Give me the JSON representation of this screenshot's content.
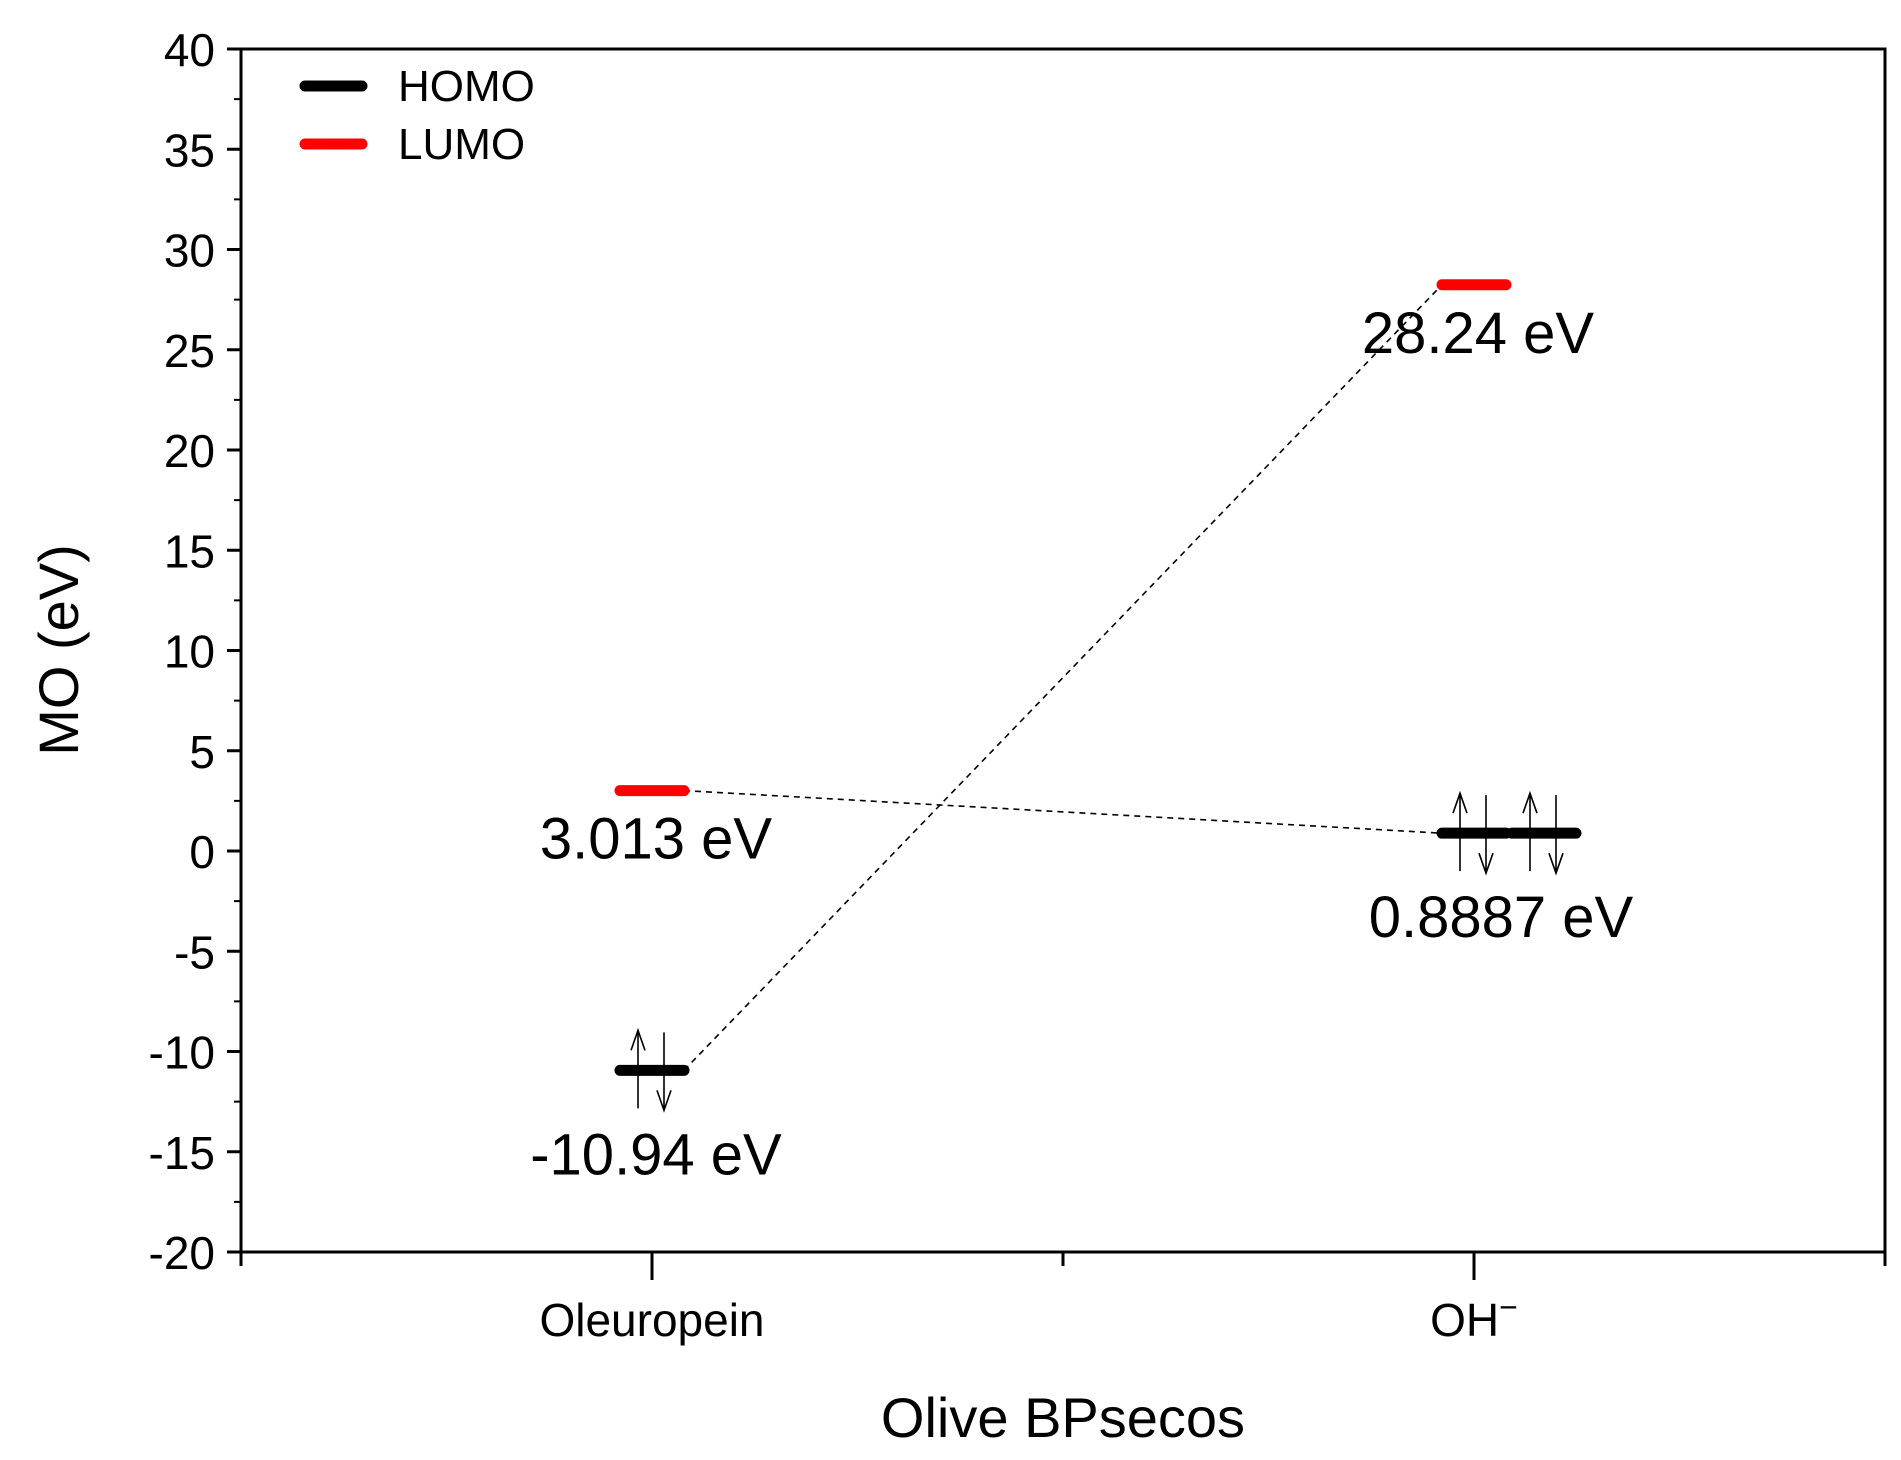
{
  "chart_data": {
    "type": "energy-level-diagram",
    "title": "",
    "xlabel": "Olive BPsecos",
    "ylabel": "MO (eV)",
    "ylim": [
      -20,
      40
    ],
    "y_ticks": [
      -20,
      -15,
      -10,
      -5,
      0,
      5,
      10,
      15,
      20,
      25,
      30,
      35,
      40
    ],
    "y_tick_labels": [
      "-20",
      "-15",
      "-10",
      "-5",
      "0",
      "5",
      "10",
      "15",
      "20",
      "25",
      "30",
      "35",
      "40"
    ],
    "y_minor_step": 2.5,
    "categories": [
      {
        "label": "Oleuropein",
        "superscript": ""
      },
      {
        "label": "OH",
        "superscript": "−"
      }
    ],
    "legend": {
      "position": "top-left",
      "entries": [
        {
          "label": "HOMO",
          "color": "#000000"
        },
        {
          "label": "LUMO",
          "color": "#ff0000"
        }
      ]
    },
    "levels": [
      {
        "category": 0,
        "orbital": "HOMO",
        "value": -10.94,
        "label": "-10.94 eV",
        "color": "#000000",
        "electron_pairs": 1
      },
      {
        "category": 0,
        "orbital": "LUMO",
        "value": 3.013,
        "label": "3.013 eV",
        "color": "#ff0000",
        "electron_pairs": 0
      },
      {
        "category": 1,
        "orbital": "HOMO",
        "value": 0.8887,
        "label": "0.8887 eV",
        "color": "#000000",
        "electron_pairs": 2
      },
      {
        "category": 1,
        "orbital": "LUMO",
        "value": 28.24,
        "label": "28.24 eV",
        "color": "#ff0000",
        "electron_pairs": 0
      }
    ],
    "connectors": [
      {
        "from": [
          0,
          "HOMO"
        ],
        "to": [
          1,
          "LUMO"
        ],
        "style": "dashed"
      },
      {
        "from": [
          0,
          "LUMO"
        ],
        "to": [
          1,
          "HOMO"
        ],
        "style": "dashed"
      }
    ]
  }
}
